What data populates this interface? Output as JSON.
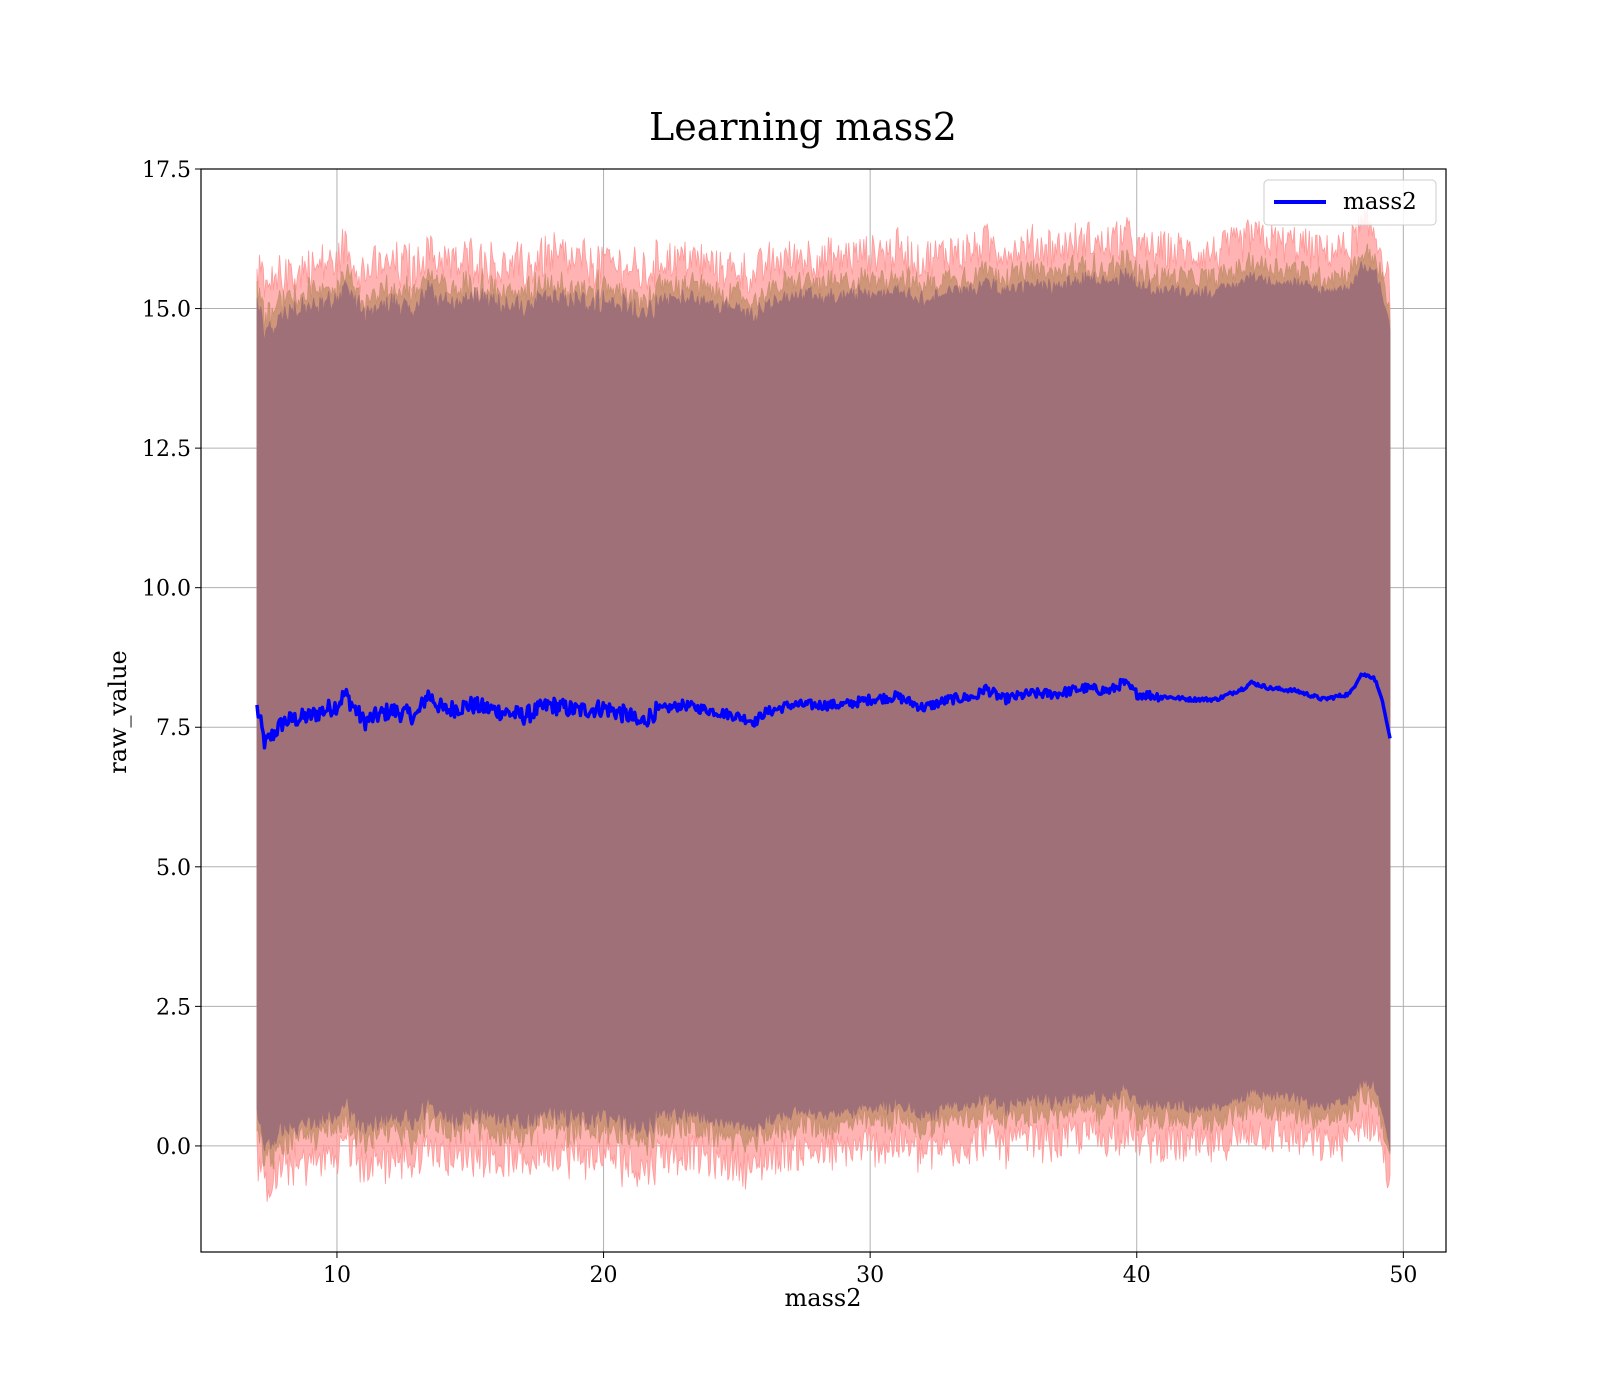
{
  "chart_data": {
    "type": "line",
    "title": "Learning mass2",
    "xlabel": "mass2",
    "ylabel": "raw_value",
    "xlim": [
      4.9,
      51.6
    ],
    "ylim": [
      -1.9,
      17.5
    ],
    "xticks": [
      10,
      20,
      30,
      40,
      50
    ],
    "yticks": [
      0.0,
      2.5,
      5.0,
      7.5,
      10.0,
      12.5,
      15.0,
      17.5
    ],
    "xtick_labels": [
      "10",
      "20",
      "30",
      "40",
      "50"
    ],
    "ytick_labels": [
      "0.0",
      "2.5",
      "5.0",
      "7.5",
      "10.0",
      "12.5",
      "15.0",
      "17.5"
    ],
    "grid": true,
    "legend_position": "upper right",
    "colors": {
      "line": "#0000ff",
      "band_outer": "#ff9999",
      "band_middle": "#c89070",
      "band_inner": "#a07079",
      "grid": "#b0b0b0"
    },
    "series": [
      {
        "name": "mass2",
        "x": [
          7.0,
          7.3,
          8.0,
          9.0,
          10.0,
          10.3,
          11.0,
          12.0,
          13.0,
          13.4,
          14.0,
          15.0,
          16.0,
          17.0,
          18.0,
          19.0,
          20.0,
          21.0,
          21.3,
          22.0,
          23.0,
          24.0,
          25.0,
          25.7,
          26.0,
          27.0,
          28.0,
          29.0,
          30.0,
          31.0,
          32.0,
          33.0,
          34.0,
          34.3,
          35.0,
          36.0,
          37.0,
          38.0,
          39.0,
          39.5,
          40.0,
          41.0,
          42.0,
          43.0,
          44.0,
          44.3,
          45.0,
          46.0,
          47.0,
          48.0,
          48.4,
          48.9,
          49.2,
          49.5
        ],
        "y": [
          7.85,
          7.2,
          7.6,
          7.7,
          7.9,
          8.1,
          7.6,
          7.8,
          7.7,
          8.1,
          7.8,
          7.9,
          7.8,
          7.7,
          7.9,
          7.8,
          7.85,
          7.7,
          7.55,
          7.8,
          7.9,
          7.8,
          7.7,
          7.6,
          7.75,
          7.9,
          7.9,
          7.9,
          8.0,
          8.05,
          7.85,
          8.0,
          8.05,
          8.2,
          8.0,
          8.1,
          8.1,
          8.2,
          8.15,
          8.3,
          8.1,
          8.05,
          8.0,
          8.0,
          8.2,
          8.3,
          8.2,
          8.15,
          8.0,
          8.1,
          8.45,
          8.4,
          8.0,
          7.3
        ],
        "band_outer_half_width": 8.0,
        "band_middle_half_width": 7.55,
        "band_inner_half_width": 7.3
      }
    ]
  }
}
